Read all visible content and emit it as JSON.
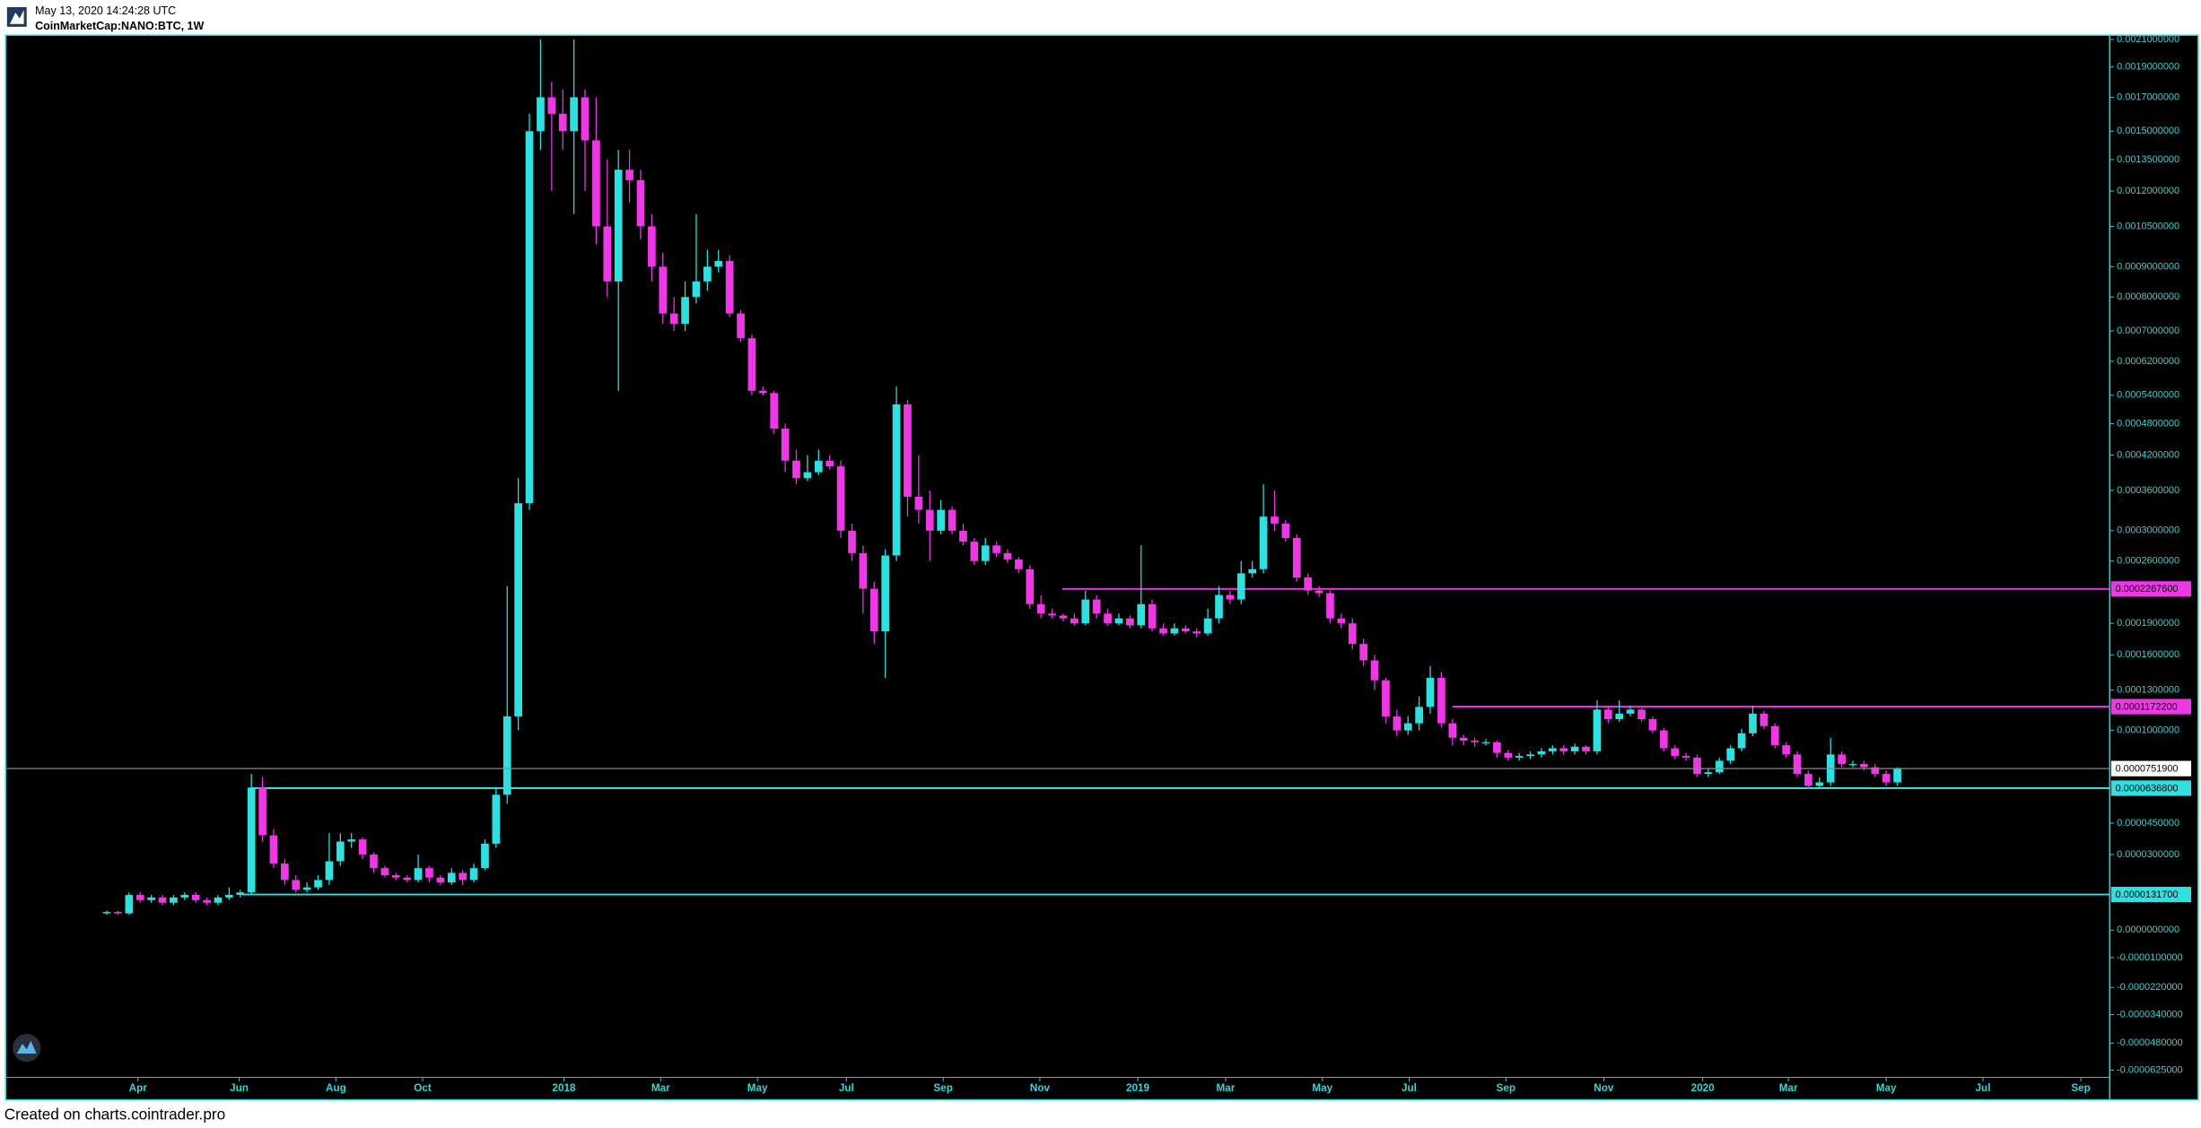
{
  "chart_data": {
    "type": "candlestick",
    "subtitle": "May 13, 2020 14:24:28 UTC",
    "title": "CoinMarketCap:NANO:BTC, 1W",
    "footer": "Created on charts.cointrader.pro",
    "up_color": "#2fe0e0",
    "down_color": "#ee38e6",
    "y_scale": "symlog",
    "grid": false,
    "xlim": [
      -9.1,
      180.1
    ],
    "xticks": [
      {
        "value": 2.8,
        "label": "Apr"
      },
      {
        "value": 11.9,
        "label": "Jun"
      },
      {
        "value": 20.6,
        "label": "Aug"
      },
      {
        "value": 28.4,
        "label": "Oct"
      },
      {
        "value": 41.1,
        "label": "2018"
      },
      {
        "value": 49.8,
        "label": "Mar"
      },
      {
        "value": 58.5,
        "label": "May"
      },
      {
        "value": 66.5,
        "label": "Jul"
      },
      {
        "value": 75.2,
        "label": "Sep"
      },
      {
        "value": 83.9,
        "label": "Nov"
      },
      {
        "value": 92.7,
        "label": "2019"
      },
      {
        "value": 100.6,
        "label": "Mar"
      },
      {
        "value": 109.3,
        "label": "May"
      },
      {
        "value": 117.1,
        "label": "Jul"
      },
      {
        "value": 125.8,
        "label": "Sep"
      },
      {
        "value": 134.6,
        "label": "Nov"
      },
      {
        "value": 143.5,
        "label": "2020"
      },
      {
        "value": 151.2,
        "label": "Mar"
      },
      {
        "value": 160.0,
        "label": "May"
      },
      {
        "value": 168.7,
        "label": "Jul"
      },
      {
        "value": 177.5,
        "label": "Sep"
      }
    ],
    "ylim": [
      -6.67e-05,
      0.002133
    ],
    "yticks": [
      {
        "value": 0.0021,
        "label": "0.0021000000"
      },
      {
        "value": 0.0019,
        "label": "0.0019000000"
      },
      {
        "value": 0.0017,
        "label": "0.0017000000"
      },
      {
        "value": 0.0015,
        "label": "0.0015000000"
      },
      {
        "value": 0.00135,
        "label": "0.0013500000"
      },
      {
        "value": 0.0012,
        "label": "0.0012000000"
      },
      {
        "value": 0.00105,
        "label": "0.0010500000"
      },
      {
        "value": 0.0009,
        "label": "0.0009000000"
      },
      {
        "value": 0.0008,
        "label": "0.0008000000"
      },
      {
        "value": 0.0007,
        "label": "0.0007000000"
      },
      {
        "value": 0.00062,
        "label": "0.0006200000"
      },
      {
        "value": 0.00054,
        "label": "0.0005400000"
      },
      {
        "value": 0.00048,
        "label": "0.0004800000"
      },
      {
        "value": 0.00042,
        "label": "0.0004200000"
      },
      {
        "value": 0.00036,
        "label": "0.0003600000"
      },
      {
        "value": 0.0003,
        "label": "0.0003000000"
      },
      {
        "value": 0.00026,
        "label": "0.0002600000"
      },
      {
        "value": 0.00019,
        "label": "0.0001900000"
      },
      {
        "value": 0.00016,
        "label": "0.0001600000"
      },
      {
        "value": 0.00013,
        "label": "0.0001300000"
      },
      {
        "value": 0.0001,
        "label": "0.0001000000"
      },
      {
        "value": 4.5e-05,
        "label": "0.0000450000"
      },
      {
        "value": 3e-05,
        "label": "0.0000300000"
      },
      {
        "value": 0,
        "label": "0.0000000000"
      },
      {
        "value": -1e-05,
        "label": "-0.0000100000"
      },
      {
        "value": -2.2e-05,
        "label": "-0.0000220000"
      },
      {
        "value": -3.4e-05,
        "label": "-0.0000340000"
      },
      {
        "value": -4.8e-05,
        "label": "-0.0000480000"
      },
      {
        "value": -6.25e-05,
        "label": "-0.0000625000"
      }
    ],
    "levels": [
      {
        "value": 0.00022676,
        "label": "0.0002267600",
        "color": "#ee38e6",
        "x_start": 85.9
      },
      {
        "value": 0.00011722,
        "label": "0.0001172200",
        "color": "#ee38e6",
        "x_start": 121.0
      },
      {
        "value": 6.368e-05,
        "label": "0.0000636800",
        "color": "#2fe0e0",
        "x_start": 12.9
      },
      {
        "value": 1.317e-05,
        "label": "0.0000131700",
        "color": "#2fe0e0",
        "x_start": 12.1
      }
    ],
    "last_price": {
      "value": 7.519e-05,
      "label": "0.0000751900"
    },
    "open": [
      6e-06,
      6.5e-06,
      6e-06,
      1.3e-05,
      1.1e-05,
      1.2e-05,
      1e-05,
      1.2e-05,
      1.3e-05,
      1.1e-05,
      1e-05,
      1.2e-05,
      1.3e-05,
      1.4e-05,
      6.4e-05,
      3.9e-05,
      2.6e-05,
      1.9e-05,
      1.5e-05,
      1.6e-05,
      1.9e-05,
      2.7e-05,
      3.6e-05,
      3.7e-05,
      3e-05,
      2.4e-05,
      2.1e-05,
      2e-05,
      1.9e-05,
      2.4e-05,
      2e-05,
      1.8e-05,
      2.2e-05,
      1.9e-05,
      2.4e-05,
      3.5e-05,
      6e-05,
      0.00011,
      0.00034,
      0.0015,
      0.0017,
      0.0016,
      0.0015,
      0.0017,
      0.00145,
      0.00105,
      0.00085,
      0.0013,
      0.00125,
      0.00105,
      0.0009,
      0.00075,
      0.00072,
      0.0008,
      0.00085,
      0.0009,
      0.00092,
      0.00075,
      0.00068,
      0.00055,
      0.000545,
      0.00047,
      0.00041,
      0.00038,
      0.00039,
      0.00041,
      0.0004,
      0.0003,
      0.00027,
      0.000227,
      0.000182,
      0.000267,
      0.00052,
      0.00035,
      0.00033,
      0.0003,
      0.00033,
      0.0003,
      0.000285,
      0.00026,
      0.00028,
      0.00027,
      0.000262,
      0.00025,
      0.00021,
      0.0002,
      0.000198,
      0.000195,
      0.00019,
      0.000215,
      0.0002,
      0.00019,
      0.000195,
      0.000188,
      0.00021,
      0.000185,
      0.00018,
      0.000185,
      0.000182,
      0.00018,
      0.000195,
      0.00022,
      0.000215,
      0.000245,
      0.00025,
      0.00032,
      0.00031,
      0.00029,
      0.00024,
      0.000225,
      0.000222,
      0.000195,
      0.00019,
      0.00017,
      0.000155,
      0.000138,
      0.00011,
      0.0001,
      0.000105,
      0.000117,
      0.00014,
      0.000105,
      9.5e-05,
      9.3e-05,
      9.2e-05,
      9.2e-05,
      8.5e-05,
      8.2e-05,
      8.3e-05,
      8.4e-05,
      8.6e-05,
      8.8e-05,
      8.6e-05,
      8.9e-05,
      8.6e-05,
      0.000115,
      0.000108,
      0.000112,
      0.000115,
      0.000108,
      0.0001,
      8.8e-05,
      8.3e-05,
      8.2e-05,
      7.2e-05,
      7.3e-05,
      8e-05,
      8.8e-05,
      9.8e-05,
      0.000112,
      0.000103,
      9e-05,
      8.4e-05,
      7.2e-05,
      6.5e-05,
      6.7e-05,
      8.4e-05,
      7.8e-05,
      7.8e-05,
      7.6e-05,
      7.2e-05,
      6.7e-05
    ],
    "high": [
      7e-06,
      7e-06,
      1.4e-05,
      1.4e-05,
      1.3e-05,
      1.3e-05,
      1.3e-05,
      1.4e-05,
      1.4e-05,
      1.2e-05,
      1.3e-05,
      1.6e-05,
      1.5e-05,
      7.2e-05,
      7e-05,
      4.2e-05,
      2.8e-05,
      2.1e-05,
      1.8e-05,
      2.1e-05,
      4e-05,
      4e-05,
      4e-05,
      3.8e-05,
      3.1e-05,
      2.5e-05,
      2.2e-05,
      2.1e-05,
      3e-05,
      2.5e-05,
      2.1e-05,
      2.4e-05,
      2.3e-05,
      2.6e-05,
      3.7e-05,
      6.4e-05,
      0.00023,
      0.00038,
      0.0016,
      0.0021,
      0.0018,
      0.00175,
      0.0021,
      0.00175,
      0.0017,
      0.00135,
      0.0014,
      0.0014,
      0.0013,
      0.0011,
      0.00095,
      0.0008,
      0.00085,
      0.0011,
      0.00096,
      0.00096,
      0.00094,
      0.00076,
      0.00069,
      0.00056,
      0.00055,
      0.00048,
      0.00043,
      0.00042,
      0.00043,
      0.00042,
      0.00041,
      0.00031,
      0.00028,
      0.000235,
      0.000275,
      0.00056,
      0.00053,
      0.00042,
      0.00036,
      0.000345,
      0.000335,
      0.00031,
      0.00029,
      0.00029,
      0.000285,
      0.000275,
      0.000265,
      0.000255,
      0.00022,
      0.000205,
      0.0002,
      0.0002,
      0.000225,
      0.00022,
      0.000205,
      0.0002,
      0.000198,
      0.00028,
      0.000215,
      0.00019,
      0.00019,
      0.000188,
      0.000185,
      0.000205,
      0.00023,
      0.000225,
      0.00026,
      0.00026,
      0.00037,
      0.00036,
      0.000315,
      0.000295,
      0.000245,
      0.00023,
      0.000225,
      0.0002,
      0.000195,
      0.000175,
      0.00016,
      0.00014,
      0.000115,
      0.00011,
      0.000125,
      0.00015,
      0.000145,
      0.000108,
      9.7e-05,
      9.5e-05,
      9.4e-05,
      9.3e-05,
      8.7e-05,
      8.5e-05,
      8.6e-05,
      8.8e-05,
      9e-05,
      9e-05,
      9.1e-05,
      9e-05,
      0.000122,
      0.000118,
      0.000122,
      0.000118,
      0.000116,
      0.00011,
      0.000102,
      9e-05,
      8.5e-05,
      8.4e-05,
      7.5e-05,
      8.2e-05,
      9e-05,
      0.000101,
      0.000118,
      0.000114,
      0.000105,
      9.2e-05,
      8.6e-05,
      7.4e-05,
      7e-05,
      9.5e-05,
      8.6e-05,
      8e-05,
      8e-05,
      7.8e-05,
      7.4e-05,
      7.6e-05
    ],
    "low": [
      5.5e-06,
      5.5e-06,
      5.5e-06,
      1e-05,
      1e-05,
      9e-06,
      9e-06,
      1.1e-05,
      1e-05,
      9e-06,
      9e-06,
      1.1e-05,
      1.2e-05,
      1.3e-05,
      3.6e-05,
      2.4e-05,
      1.7e-05,
      1.4e-05,
      1.4e-05,
      1.5e-05,
      1.7e-05,
      2.5e-05,
      3.3e-05,
      2.8e-05,
      2.2e-05,
      2e-05,
      1.9e-05,
      1.8e-05,
      1.8e-05,
      1.8e-05,
      1.7e-05,
      1.7e-05,
      1.7e-05,
      1.8e-05,
      2.3e-05,
      3.3e-05,
      5.5e-05,
      0.0001,
      0.00033,
      0.0014,
      0.0012,
      0.0014,
      0.0011,
      0.0012,
      0.00098,
      0.0008,
      0.00055,
      0.00115,
      0.001,
      0.00085,
      0.00072,
      0.0007,
      0.0007,
      0.00078,
      0.00082,
      0.00088,
      0.00074,
      0.00067,
      0.00054,
      0.00054,
      0.00046,
      0.00039,
      0.00037,
      0.000375,
      0.000385,
      0.000395,
      0.00029,
      0.00026,
      0.0002,
      0.00017,
      0.00014,
      0.00026,
      0.00032,
      0.00031,
      0.00026,
      0.000295,
      0.000295,
      0.00028,
      0.000255,
      0.000255,
      0.000265,
      0.000258,
      0.000245,
      0.000205,
      0.000195,
      0.000195,
      0.000192,
      0.000188,
      0.000188,
      0.000195,
      0.000188,
      0.000188,
      0.000185,
      0.000185,
      0.000182,
      0.000178,
      0.000178,
      0.00018,
      0.000176,
      0.000178,
      0.00019,
      0.00021,
      0.00021,
      0.00024,
      0.000245,
      0.0003,
      0.000285,
      0.000235,
      0.00022,
      0.000218,
      0.00019,
      0.000185,
      0.000165,
      0.00015,
      0.00013,
      0.000105,
      9.6e-05,
      9.7e-05,
      0.0001,
      0.000112,
      0.000102,
      9e-05,
      9e-05,
      8.9e-05,
      9e-05,
      8.2e-05,
      8e-05,
      8e-05,
      8.1e-05,
      8.2e-05,
      8.4e-05,
      8.4e-05,
      8.4e-05,
      8.4e-05,
      8.4e-05,
      0.000105,
      0.000106,
      0.00011,
      0.000106,
      9.8e-05,
      8.6e-05,
      8.1e-05,
      8e-05,
      7e-05,
      7e-05,
      7.2e-05,
      7.8e-05,
      8.6e-05,
      9.6e-05,
      0.000101,
      8.8e-05,
      8.2e-05,
      7e-05,
      6.3e-05,
      6.3e-05,
      6.5e-05,
      7.6e-05,
      7.6e-05,
      7.4e-05,
      7e-05,
      6.5e-05,
      6.5e-05
    ],
    "close": [
      6.5e-06,
      6e-06,
      1.3e-05,
      1.1e-05,
      1.2e-05,
      1e-05,
      1.2e-05,
      1.3e-05,
      1.1e-05,
      1e-05,
      1.2e-05,
      1.3e-05,
      1.4e-05,
      6.4e-05,
      3.9e-05,
      2.6e-05,
      1.9e-05,
      1.5e-05,
      1.6e-05,
      1.9e-05,
      2.7e-05,
      3.6e-05,
      3.7e-05,
      3e-05,
      2.4e-05,
      2.1e-05,
      2e-05,
      1.9e-05,
      2.4e-05,
      2e-05,
      1.8e-05,
      2.2e-05,
      1.9e-05,
      2.4e-05,
      3.5e-05,
      6e-05,
      0.00011,
      0.00034,
      0.0015,
      0.0017,
      0.0016,
      0.0015,
      0.0017,
      0.00145,
      0.00105,
      0.00085,
      0.0013,
      0.00125,
      0.00105,
      0.0009,
      0.00075,
      0.00072,
      0.0008,
      0.00085,
      0.0009,
      0.00092,
      0.00075,
      0.00068,
      0.00055,
      0.000545,
      0.00047,
      0.00041,
      0.00038,
      0.00039,
      0.00041,
      0.0004,
      0.0003,
      0.00027,
      0.000227,
      0.000182,
      0.000267,
      0.00052,
      0.00035,
      0.00033,
      0.0003,
      0.00033,
      0.0003,
      0.000285,
      0.00026,
      0.00028,
      0.00027,
      0.000262,
      0.00025,
      0.00021,
      0.0002,
      0.000198,
      0.000195,
      0.00019,
      0.000215,
      0.0002,
      0.00019,
      0.000195,
      0.000188,
      0.00021,
      0.000185,
      0.00018,
      0.000185,
      0.000182,
      0.00018,
      0.000195,
      0.00022,
      0.000215,
      0.000245,
      0.00025,
      0.00032,
      0.00031,
      0.00029,
      0.00024,
      0.000225,
      0.000222,
      0.000195,
      0.00019,
      0.00017,
      0.000155,
      0.000138,
      0.00011,
      0.0001,
      0.000105,
      0.000117,
      0.00014,
      0.000105,
      9.5e-05,
      9.3e-05,
      9.2e-05,
      9.2e-05,
      8.5e-05,
      8.2e-05,
      8.3e-05,
      8.4e-05,
      8.6e-05,
      8.8e-05,
      8.6e-05,
      8.9e-05,
      8.6e-05,
      0.000115,
      0.000108,
      0.000112,
      0.000115,
      0.000108,
      0.0001,
      8.8e-05,
      8.3e-05,
      8.2e-05,
      7.2e-05,
      7.3e-05,
      8e-05,
      8.8e-05,
      9.8e-05,
      0.000112,
      0.000103,
      9e-05,
      8.4e-05,
      7.2e-05,
      6.5e-05,
      6.7e-05,
      8.4e-05,
      7.8e-05,
      7.8e-05,
      7.6e-05,
      7.2e-05,
      6.7e-05,
      7.519e-05
    ]
  }
}
